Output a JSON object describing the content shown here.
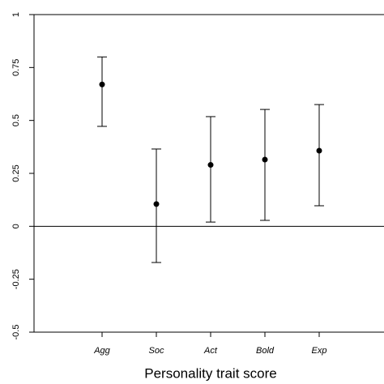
{
  "chart_data": {
    "type": "errorbar",
    "xlabel": "Personality trait score",
    "categories": [
      "Agg",
      "Soc",
      "Act",
      "Bold",
      "Exp"
    ],
    "values": [
      0.67,
      0.105,
      0.29,
      0.315,
      0.357
    ],
    "lower": [
      0.472,
      -0.171,
      0.02,
      0.028,
      0.097
    ],
    "upper": [
      0.8,
      0.365,
      0.518,
      0.552,
      0.575
    ],
    "color": "#000000",
    "ylim": [
      -0.5,
      1
    ],
    "yticks": [
      -0.5,
      -0.25,
      0,
      0.25,
      0.5,
      0.75,
      1
    ]
  }
}
